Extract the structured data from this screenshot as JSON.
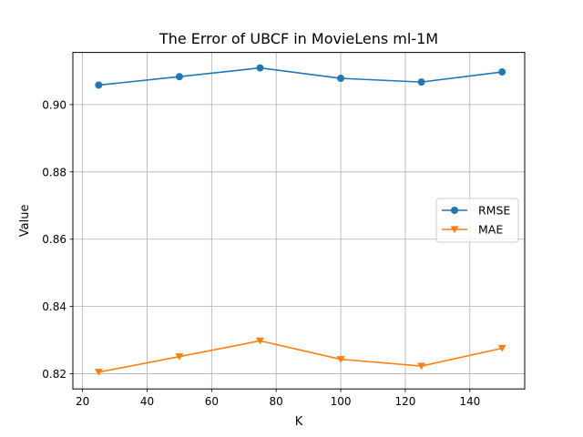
{
  "chart_data": {
    "type": "line",
    "title": "The Error of UBCF in MovieLens ml-1M",
    "xlabel": "K",
    "ylabel": "Value",
    "x": [
      25,
      50,
      75,
      100,
      125,
      150
    ],
    "xlim": [
      17,
      157
    ],
    "ylim": [
      0.8155,
      0.9155
    ],
    "xticks": [
      20,
      40,
      60,
      80,
      100,
      120,
      140
    ],
    "yticks": [
      0.82,
      0.84,
      0.86,
      0.88,
      0.9
    ],
    "ytick_labels": [
      "0.82",
      "0.84",
      "0.86",
      "0.88",
      "0.90"
    ],
    "grid": true,
    "legend_position": "center-right",
    "series": [
      {
        "name": "RMSE",
        "values": [
          0.9058,
          0.9083,
          0.9109,
          0.9078,
          0.9067,
          0.9097
        ],
        "color": "#1f77b4",
        "marker": "circle"
      },
      {
        "name": "MAE",
        "values": [
          0.8205,
          0.8251,
          0.8298,
          0.8243,
          0.8223,
          0.8276
        ],
        "color": "#ff7f0e",
        "marker": "triangle-down"
      }
    ]
  }
}
